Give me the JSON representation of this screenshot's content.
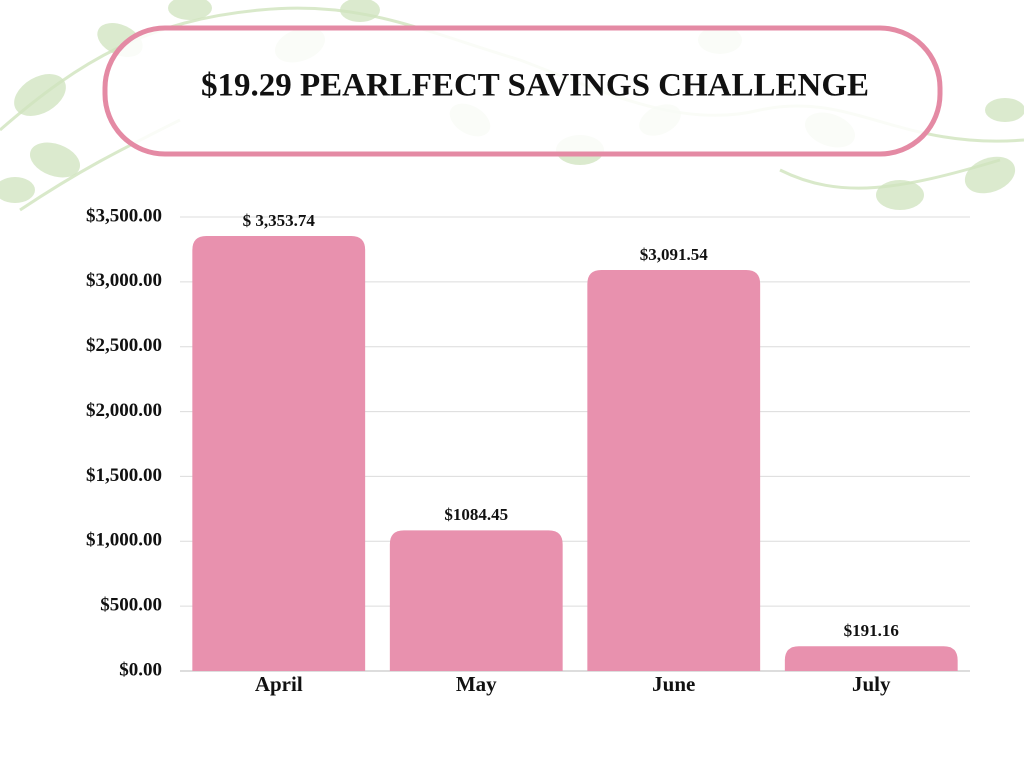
{
  "chart_data": {
    "type": "bar",
    "title": "$19.29 PEARLFECT SAVINGS CHALLENGE",
    "categories": [
      "April",
      "May",
      "June",
      "July"
    ],
    "values": [
      3353.74,
      1084.45,
      3091.54,
      191.16
    ],
    "value_labels": [
      "$ 3,353.74",
      "$1084.45",
      "$3,091.54",
      "$191.16"
    ],
    "color": "#e891ae",
    "ylim": [
      0,
      3500
    ],
    "yticks": [
      {
        "value": 0,
        "label": "$0.00"
      },
      {
        "value": 500,
        "label": "$500.00"
      },
      {
        "value": 1000,
        "label": "$1,000.00"
      },
      {
        "value": 1500,
        "label": "$1,500.00"
      },
      {
        "value": 2000,
        "label": "$2,000.00"
      },
      {
        "value": 2500,
        "label": "$2,500.00"
      },
      {
        "value": 3000,
        "label": "$3,000.00"
      },
      {
        "value": 3500,
        "label": "$3,500.00"
      }
    ],
    "grid": true
  }
}
